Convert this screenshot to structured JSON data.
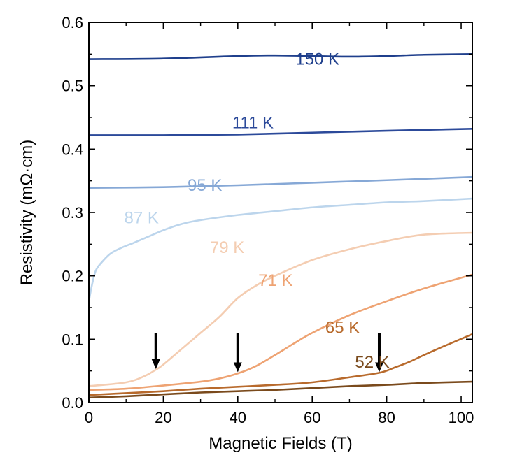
{
  "chart_data": {
    "type": "line",
    "title": "",
    "xlabel": "Magnetic Fields (T)",
    "ylabel": "Resistivity (mΩ·cm)",
    "xlim": [
      0,
      103
    ],
    "ylim": [
      0,
      0.6
    ],
    "xticks": [
      0,
      20,
      40,
      60,
      80,
      100
    ],
    "yticks": [
      0.0,
      0.1,
      0.2,
      0.3,
      0.4,
      0.5,
      0.6
    ],
    "xtick_labels": [
      "0",
      "20",
      "40",
      "60",
      "80",
      "100"
    ],
    "ytick_labels": [
      "0.0",
      "0.1",
      "0.2",
      "0.3",
      "0.4",
      "0.5",
      "0.6"
    ],
    "series": [
      {
        "name": "150 K",
        "label": "150 K",
        "color": "#1f3f8c",
        "label_at": [
          55.5,
          0.533
        ],
        "x": [
          0,
          20,
          40,
          50,
          60,
          70,
          80,
          90,
          103
        ],
        "y": [
          0.542,
          0.543,
          0.547,
          0.548,
          0.547,
          0.546,
          0.547,
          0.549,
          0.55
        ]
      },
      {
        "name": "111 K",
        "label": "111 K",
        "color": "#2c4a9a",
        "label_at": [
          38.5,
          0.433
        ],
        "x": [
          0,
          20,
          40,
          60,
          80,
          103
        ],
        "y": [
          0.422,
          0.422,
          0.423,
          0.426,
          0.429,
          0.432
        ]
      },
      {
        "name": "95 K",
        "label": "95 K",
        "color": "#86a8d6",
        "label_at": [
          26.5,
          0.334
        ],
        "x": [
          0,
          20,
          40,
          60,
          80,
          103
        ],
        "y": [
          0.339,
          0.34,
          0.343,
          0.347,
          0.351,
          0.356
        ]
      },
      {
        "name": "87 K",
        "label": "87 K",
        "color": "#bcd5ec",
        "label_at": [
          9.5,
          0.283
        ],
        "x": [
          0,
          1,
          2,
          4,
          6,
          9,
          12,
          16,
          20,
          25,
          30,
          40,
          50,
          60,
          70,
          80,
          90,
          103
        ],
        "y": [
          0.16,
          0.19,
          0.21,
          0.225,
          0.236,
          0.245,
          0.252,
          0.262,
          0.272,
          0.282,
          0.288,
          0.296,
          0.302,
          0.308,
          0.312,
          0.316,
          0.318,
          0.322
        ]
      },
      {
        "name": "79 K",
        "label": "79 K",
        "color": "#f4cdb2",
        "label_at": [
          32.5,
          0.236
        ],
        "x": [
          0,
          10,
          15,
          18,
          20,
          25,
          30,
          35,
          40,
          45,
          50,
          60,
          70,
          80,
          90,
          103
        ],
        "y": [
          0.026,
          0.032,
          0.042,
          0.052,
          0.06,
          0.085,
          0.11,
          0.135,
          0.165,
          0.185,
          0.2,
          0.225,
          0.242,
          0.255,
          0.265,
          0.268
        ]
      },
      {
        "name": "71 K",
        "label": "71 K",
        "color": "#eea373",
        "label_at": [
          45.5,
          0.184
        ],
        "x": [
          0,
          10,
          20,
          30,
          35,
          40,
          45,
          50,
          55,
          60,
          70,
          80,
          90,
          103
        ],
        "y": [
          0.02,
          0.022,
          0.027,
          0.033,
          0.038,
          0.046,
          0.058,
          0.075,
          0.093,
          0.11,
          0.138,
          0.16,
          0.18,
          0.202
        ]
      },
      {
        "name": "65 K",
        "label": "65 K",
        "color": "#b86a2c",
        "label_at": [
          63.5,
          0.11
        ],
        "x": [
          0,
          10,
          20,
          30,
          40,
          50,
          60,
          70,
          78,
          82,
          86,
          90,
          95,
          103
        ],
        "y": [
          0.012,
          0.015,
          0.018,
          0.022,
          0.025,
          0.028,
          0.032,
          0.04,
          0.047,
          0.055,
          0.064,
          0.075,
          0.088,
          0.108
        ]
      },
      {
        "name": "52 K",
        "label": "52 K",
        "color": "#7a4a1c",
        "label_at": [
          71.5,
          0.055
        ],
        "x": [
          0,
          10,
          20,
          30,
          40,
          50,
          60,
          70,
          80,
          90,
          103
        ],
        "y": [
          0.008,
          0.01,
          0.013,
          0.016,
          0.018,
          0.02,
          0.023,
          0.026,
          0.028,
          0.031,
          0.033
        ]
      }
    ],
    "annotations": [
      {
        "type": "arrow",
        "x": 18,
        "y_from": 0.11,
        "y_to": 0.053
      },
      {
        "type": "arrow",
        "x": 40,
        "y_from": 0.11,
        "y_to": 0.048
      },
      {
        "type": "arrow",
        "x": 78,
        "y_from": 0.11,
        "y_to": 0.048
      }
    ],
    "grid": false,
    "legend": "inline labels"
  }
}
